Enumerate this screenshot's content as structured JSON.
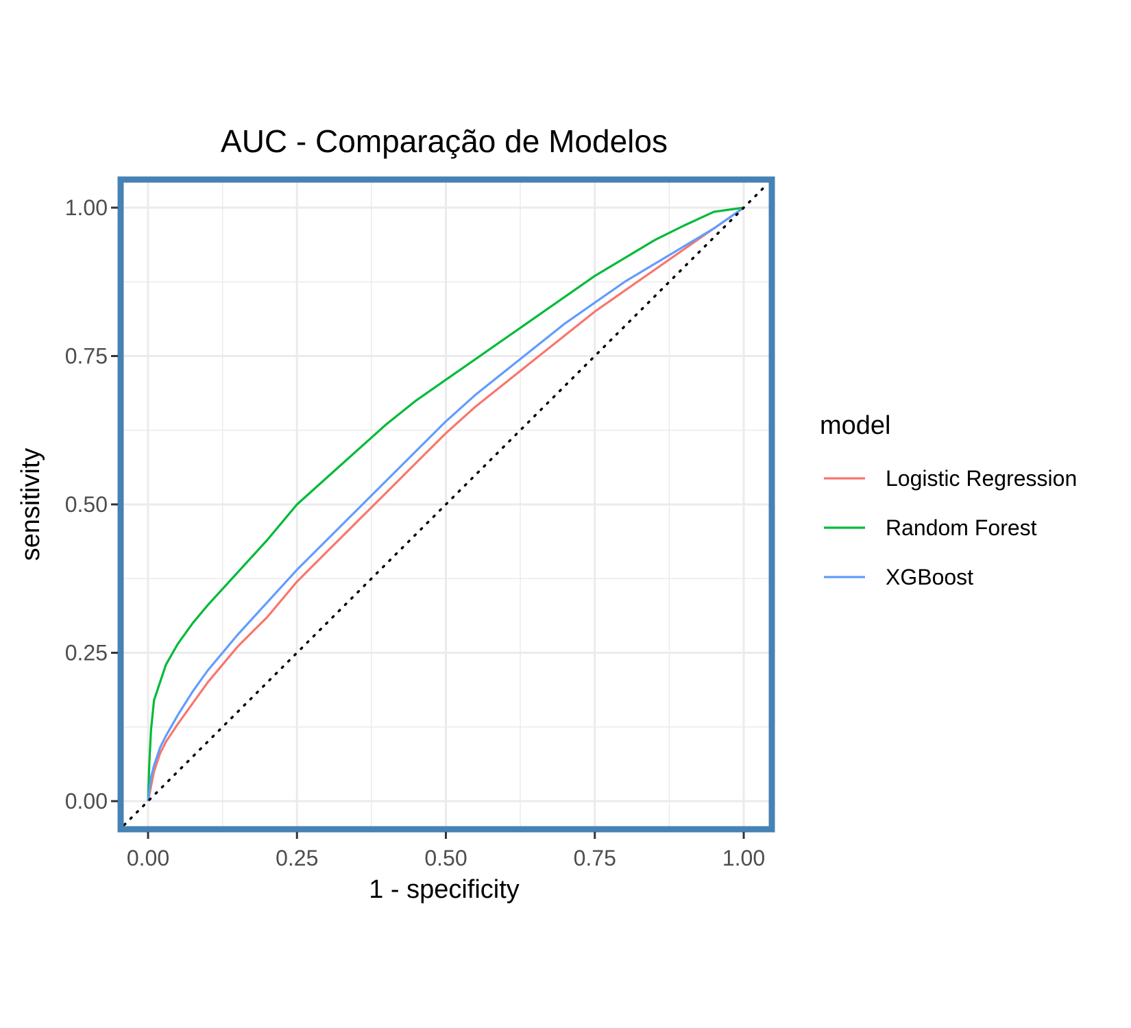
{
  "chart_data": {
    "type": "line",
    "title": "AUC - Comparação de Modelos",
    "xlabel": "1 - specificity",
    "ylabel": "sensitivity",
    "xlim": [
      0,
      1
    ],
    "ylim": [
      0,
      1
    ],
    "x_ticks": [
      "0.00",
      "0.25",
      "0.50",
      "0.75",
      "1.00"
    ],
    "y_ticks": [
      "0.00",
      "0.25",
      "0.50",
      "0.75",
      "1.00"
    ],
    "grid": true,
    "legend": {
      "title": "model",
      "position": "right"
    },
    "panel_border_color": "#4682b4",
    "reference_line": {
      "style": "dotted",
      "color": "#000000",
      "points": [
        [
          -0.04,
          -0.04
        ],
        [
          1.04,
          1.04
        ]
      ]
    },
    "series": [
      {
        "name": "Logistic Regression",
        "color": "#f8766d",
        "points": [
          [
            0,
            0
          ],
          [
            0.01,
            0.05
          ],
          [
            0.02,
            0.08
          ],
          [
            0.03,
            0.1
          ],
          [
            0.05,
            0.13
          ],
          [
            0.075,
            0.165
          ],
          [
            0.1,
            0.2
          ],
          [
            0.15,
            0.26
          ],
          [
            0.2,
            0.31
          ],
          [
            0.25,
            0.37
          ],
          [
            0.3,
            0.42
          ],
          [
            0.35,
            0.47
          ],
          [
            0.4,
            0.52
          ],
          [
            0.45,
            0.57
          ],
          [
            0.5,
            0.62
          ],
          [
            0.55,
            0.665
          ],
          [
            0.6,
            0.705
          ],
          [
            0.65,
            0.745
          ],
          [
            0.7,
            0.785
          ],
          [
            0.75,
            0.825
          ],
          [
            0.8,
            0.86
          ],
          [
            0.85,
            0.895
          ],
          [
            0.9,
            0.93
          ],
          [
            0.95,
            0.965
          ],
          [
            1,
            1
          ]
        ]
      },
      {
        "name": "Random Forest",
        "color": "#00ba38",
        "points": [
          [
            0,
            0
          ],
          [
            0.002,
            0.06
          ],
          [
            0.005,
            0.12
          ],
          [
            0.01,
            0.17
          ],
          [
            0.02,
            0.2
          ],
          [
            0.03,
            0.23
          ],
          [
            0.05,
            0.265
          ],
          [
            0.075,
            0.3
          ],
          [
            0.1,
            0.33
          ],
          [
            0.15,
            0.385
          ],
          [
            0.2,
            0.44
          ],
          [
            0.25,
            0.5
          ],
          [
            0.3,
            0.545
          ],
          [
            0.35,
            0.59
          ],
          [
            0.4,
            0.635
          ],
          [
            0.45,
            0.675
          ],
          [
            0.5,
            0.71
          ],
          [
            0.55,
            0.745
          ],
          [
            0.6,
            0.78
          ],
          [
            0.65,
            0.815
          ],
          [
            0.7,
            0.85
          ],
          [
            0.75,
            0.885
          ],
          [
            0.8,
            0.915
          ],
          [
            0.85,
            0.945
          ],
          [
            0.9,
            0.97
          ],
          [
            0.95,
            0.993
          ],
          [
            1,
            1
          ]
        ]
      },
      {
        "name": "XGBoost",
        "color": "#619cff",
        "points": [
          [
            0,
            0
          ],
          [
            0.005,
            0.04
          ],
          [
            0.01,
            0.06
          ],
          [
            0.02,
            0.09
          ],
          [
            0.03,
            0.11
          ],
          [
            0.05,
            0.145
          ],
          [
            0.075,
            0.185
          ],
          [
            0.1,
            0.22
          ],
          [
            0.15,
            0.28
          ],
          [
            0.2,
            0.335
          ],
          [
            0.25,
            0.39
          ],
          [
            0.3,
            0.44
          ],
          [
            0.35,
            0.49
          ],
          [
            0.4,
            0.54
          ],
          [
            0.45,
            0.59
          ],
          [
            0.5,
            0.64
          ],
          [
            0.55,
            0.685
          ],
          [
            0.6,
            0.725
          ],
          [
            0.65,
            0.765
          ],
          [
            0.7,
            0.805
          ],
          [
            0.75,
            0.84
          ],
          [
            0.8,
            0.875
          ],
          [
            0.85,
            0.905
          ],
          [
            0.9,
            0.935
          ],
          [
            0.95,
            0.965
          ],
          [
            1,
            1
          ]
        ]
      }
    ]
  }
}
